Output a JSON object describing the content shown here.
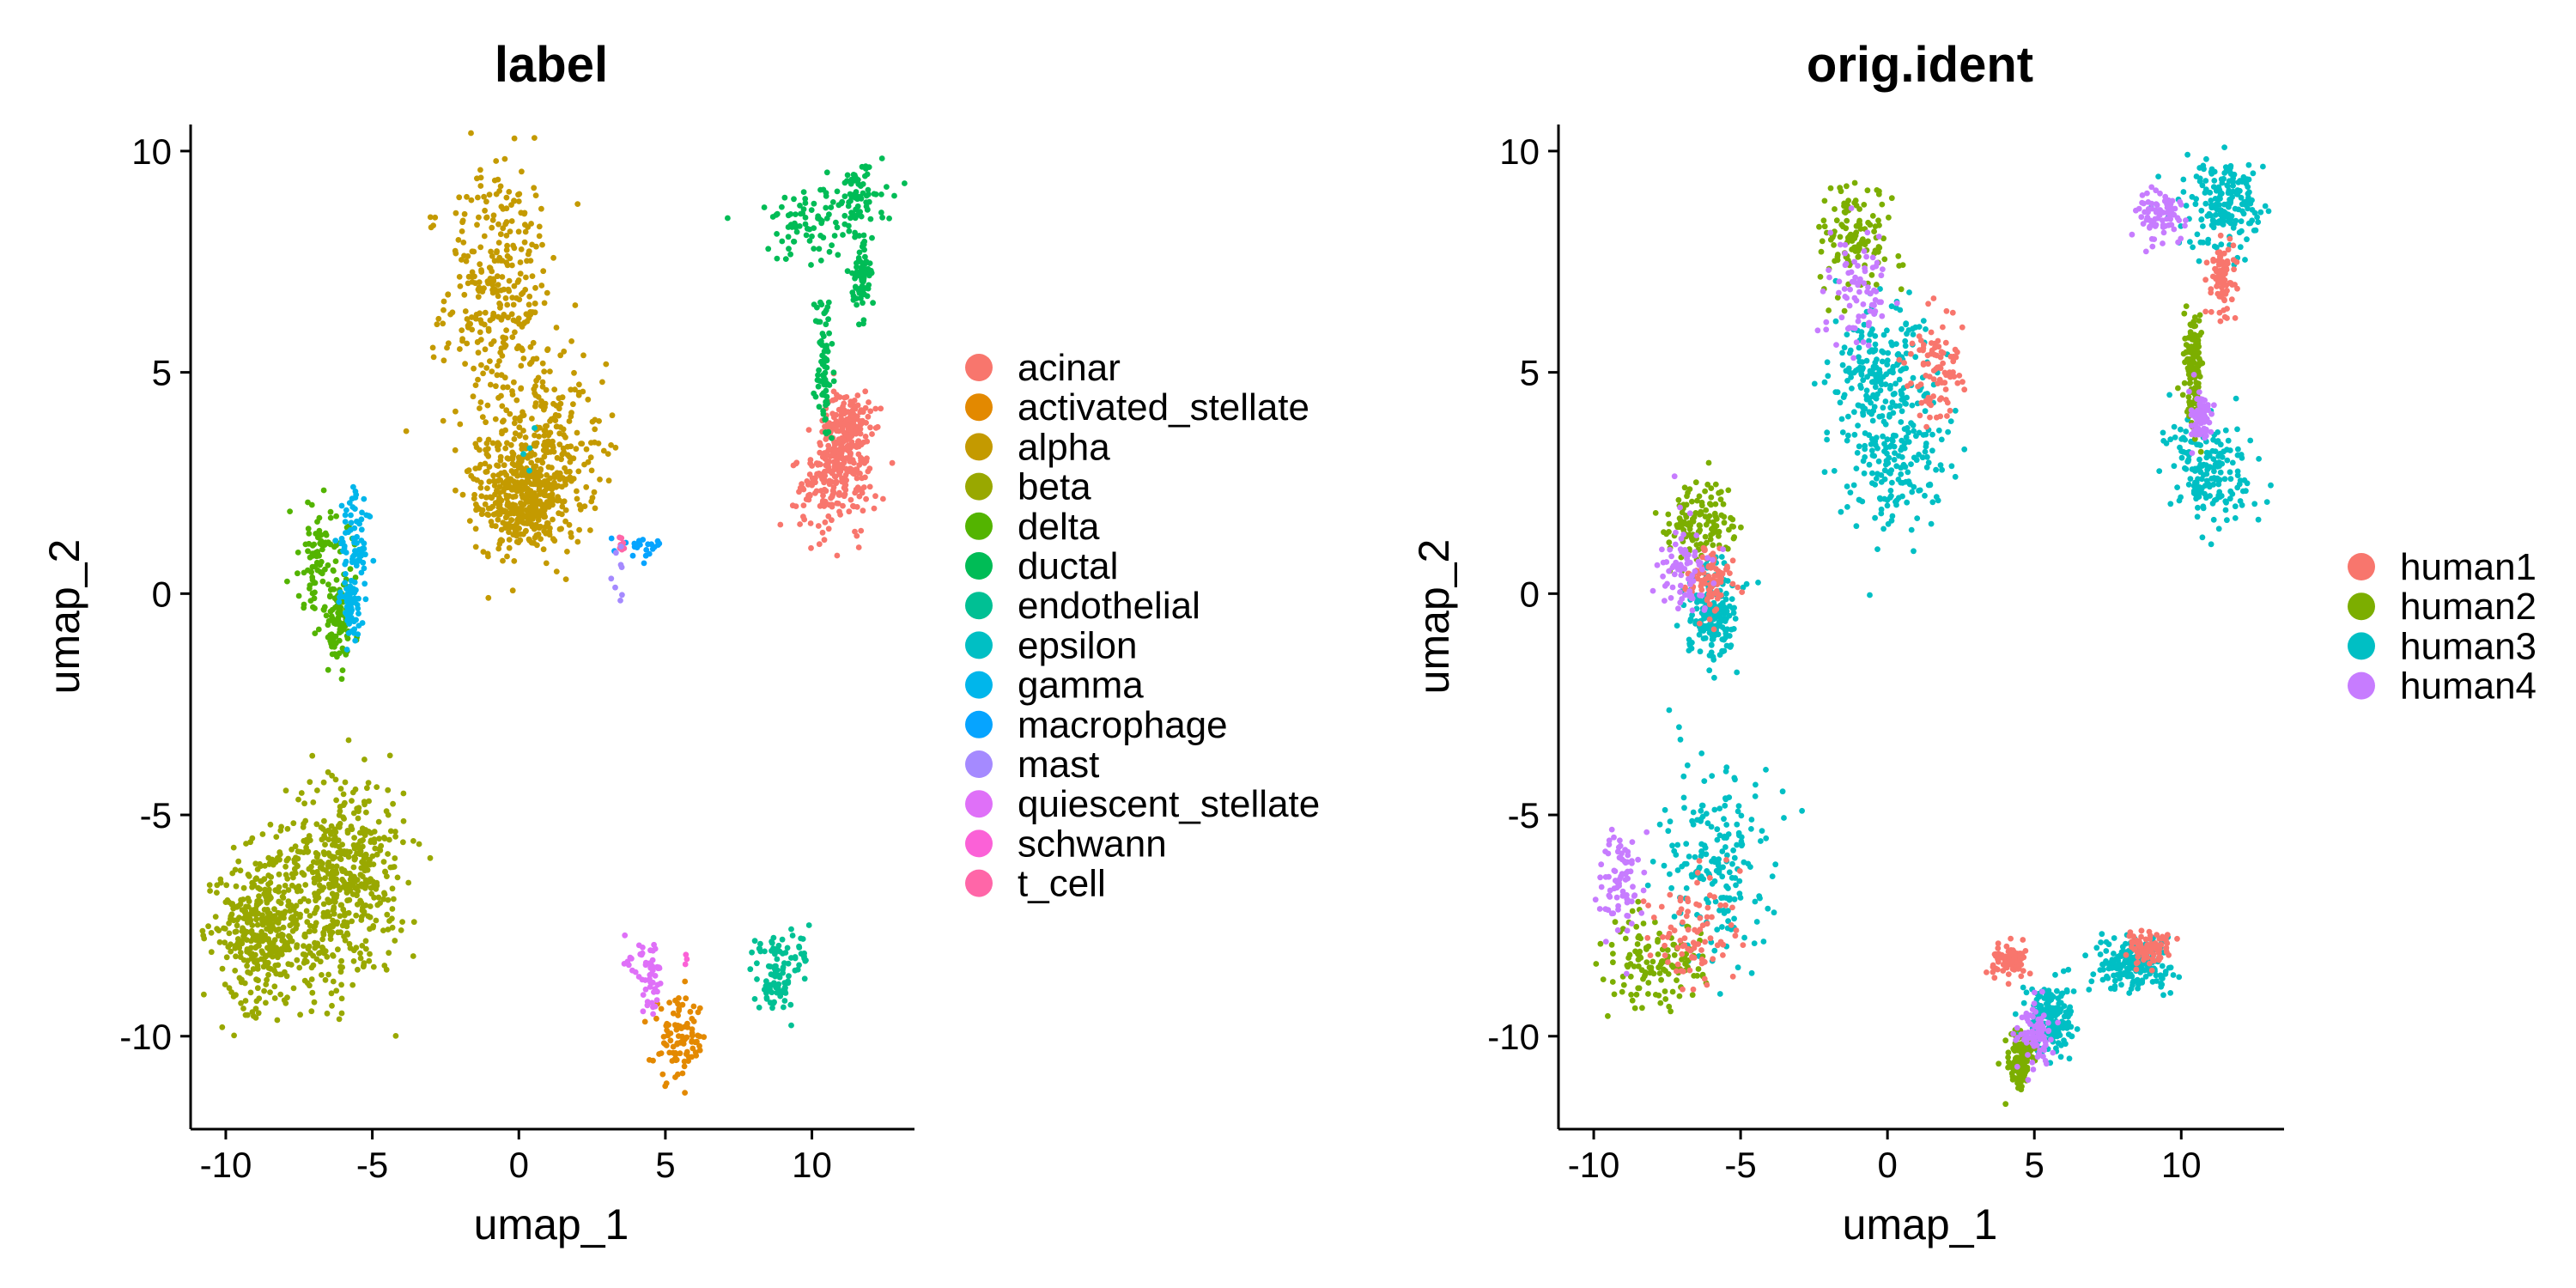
{
  "colors": {
    "acinar": "#F8766D",
    "activated_stellate": "#E38900",
    "alpha": "#C49A00",
    "beta": "#99A800",
    "delta": "#53B400",
    "ductal": "#00BC56",
    "endothelial": "#00C094",
    "epsilon": "#00BFC4",
    "gamma": "#00B6EB",
    "macrophage": "#06A4FF",
    "mast": "#A58AFF",
    "quiescent_stellate": "#DF70F8",
    "schwann": "#FB61D7",
    "t_cell": "#FF66A8",
    "human1": "#F8766D",
    "human2": "#7CAE00",
    "human3": "#00BFC4",
    "human4": "#C77CFF"
  },
  "chart_data": [
    {
      "type": "scatter",
      "title": "label",
      "xlabel": "umap_1",
      "ylabel": "umap_2",
      "xlim": [
        -11.2,
        13.5
      ],
      "ylim": [
        -12.1,
        10.6
      ],
      "xticks": [
        -10,
        -5,
        0,
        5,
        10
      ],
      "yticks": [
        10,
        5,
        0,
        -5,
        -10
      ],
      "xtick_labels": [
        "-10",
        "-5",
        "0",
        "5",
        "10"
      ],
      "ytick_labels": [
        "10",
        "5",
        "0",
        "-5",
        "-10"
      ],
      "grid": false,
      "legend_position": "right",
      "legend": [
        "acinar",
        "activated_stellate",
        "alpha",
        "beta",
        "delta",
        "ductal",
        "endothelial",
        "epsilon",
        "gamma",
        "macrophage",
        "mast",
        "quiescent_stellate",
        "schwann",
        "t_cell"
      ],
      "clusters": [
        {
          "label": "alpha",
          "n": 950,
          "components": [
            {
              "cx": -0.7,
              "cy": 6.8,
              "sx": 0.9,
              "sy": 1.5
            },
            {
              "cx": 0.6,
              "cy": 3.2,
              "sx": 1.1,
              "sy": 1.0
            },
            {
              "cx": 0.2,
              "cy": 2.0,
              "sx": 0.8,
              "sy": 0.5
            }
          ]
        },
        {
          "label": "beta",
          "n": 900,
          "components": [
            {
              "cx": -6.9,
              "cy": -7.4,
              "sx": 1.3,
              "sy": 0.9
            },
            {
              "cx": -5.9,
              "cy": -5.9,
              "sx": 1.0,
              "sy": 0.9
            },
            {
              "cx": -8.9,
              "cy": -7.6,
              "sx": 0.7,
              "sy": 0.9
            }
          ]
        },
        {
          "label": "acinar",
          "n": 380,
          "components": [
            {
              "cx": 10.8,
              "cy": 2.6,
              "sx": 0.7,
              "sy": 0.6
            },
            {
              "cx": 11.2,
              "cy": 3.6,
              "sx": 0.4,
              "sy": 0.5
            }
          ]
        },
        {
          "label": "ductal",
          "n": 300,
          "components": [
            {
              "cx": 9.9,
              "cy": 8.4,
              "sx": 0.9,
              "sy": 0.4
            },
            {
              "cx": 11.6,
              "cy": 8.9,
              "sx": 0.4,
              "sy": 0.5
            },
            {
              "cx": 10.4,
              "cy": 5.1,
              "sx": 0.15,
              "sy": 0.9
            },
            {
              "cx": 11.7,
              "cy": 7.1,
              "sx": 0.15,
              "sy": 0.4
            }
          ]
        },
        {
          "label": "delta",
          "n": 180,
          "components": [
            {
              "cx": -6.8,
              "cy": 0.8,
              "sx": 0.5,
              "sy": 0.6
            },
            {
              "cx": -6.2,
              "cy": -0.7,
              "sx": 0.3,
              "sy": 0.5
            }
          ]
        },
        {
          "label": "gamma",
          "n": 130,
          "components": [
            {
              "cx": -5.6,
              "cy": 1.2,
              "sx": 0.3,
              "sy": 0.6
            },
            {
              "cx": -5.7,
              "cy": -0.2,
              "sx": 0.2,
              "sy": 0.4
            }
          ]
        },
        {
          "label": "endothelial",
          "n": 110,
          "components": [
            {
              "cx": 8.9,
              "cy": -8.2,
              "sx": 0.55,
              "sy": 0.25
            },
            {
              "cx": 8.8,
              "cy": -8.9,
              "sx": 0.3,
              "sy": 0.25
            }
          ]
        },
        {
          "label": "activated_stellate",
          "n": 95,
          "components": [
            {
              "cx": 5.5,
              "cy": -10.1,
              "sx": 0.45,
              "sy": 0.45
            }
          ]
        },
        {
          "label": "quiescent_stellate",
          "n": 55,
          "components": [
            {
              "cx": 4.3,
              "cy": -8.3,
              "sx": 0.35,
              "sy": 0.25
            },
            {
              "cx": 4.6,
              "cy": -9.0,
              "sx": 0.2,
              "sy": 0.3
            }
          ]
        },
        {
          "label": "macrophage",
          "n": 22,
          "components": [
            {
              "cx": 4.2,
              "cy": 1.1,
              "sx": 0.35,
              "sy": 0.12
            }
          ]
        },
        {
          "label": "t_cell",
          "n": 10,
          "components": [
            {
              "cx": 3.5,
              "cy": 1.1,
              "sx": 0.1,
              "sy": 0.1
            }
          ]
        },
        {
          "label": "mast",
          "n": 8,
          "components": [
            {
              "cx": 3.4,
              "cy": 0.3,
              "sx": 0.1,
              "sy": 0.3
            }
          ]
        },
        {
          "label": "epsilon",
          "n": 4,
          "components": [
            {
              "cx": 0.4,
              "cy": 3.3,
              "sx": 0.3,
              "sy": 0.3
            }
          ]
        },
        {
          "label": "schwann",
          "n": 3,
          "components": [
            {
              "cx": 5.7,
              "cy": -8.3,
              "sx": 0.1,
              "sy": 0.1
            }
          ]
        }
      ]
    },
    {
      "type": "scatter",
      "title": "orig.ident",
      "xlabel": "umap_1",
      "ylabel": "umap_2",
      "xlim": [
        -11.2,
        13.5
      ],
      "ylim": [
        -12.1,
        10.6
      ],
      "xticks": [
        -10,
        -5,
        0,
        5,
        10
      ],
      "yticks": [
        10,
        5,
        0,
        -5,
        -10
      ],
      "xtick_labels": [
        "-10",
        "-5",
        "0",
        "5",
        "10"
      ],
      "ytick_labels": [
        "10",
        "5",
        "0",
        "-5",
        "-10"
      ],
      "grid": false,
      "legend_position": "right",
      "legend": [
        "human1",
        "human2",
        "human3",
        "human4"
      ],
      "clusters": [
        {
          "label": "human3",
          "n": 1500,
          "components": [
            {
              "cx": 0.4,
              "cy": 3.3,
              "sx": 1.0,
              "sy": 1.0
            },
            {
              "cx": -0.2,
              "cy": 5.0,
              "sx": 0.8,
              "sy": 0.8
            },
            {
              "cx": 11.0,
              "cy": 2.8,
              "sx": 0.7,
              "sy": 0.6
            },
            {
              "cx": 11.4,
              "cy": 8.8,
              "sx": 0.7,
              "sy": 0.5
            },
            {
              "cx": -5.8,
              "cy": -6.0,
              "sx": 0.9,
              "sy": 1.1
            },
            {
              "cx": -6.0,
              "cy": -0.4,
              "sx": 0.4,
              "sy": 0.5
            },
            {
              "cx": 8.4,
              "cy": -8.4,
              "sx": 0.6,
              "sy": 0.3
            },
            {
              "cx": 5.5,
              "cy": -9.6,
              "sx": 0.4,
              "sy": 0.4
            }
          ]
        },
        {
          "label": "human2",
          "n": 650,
          "components": [
            {
              "cx": -1.2,
              "cy": 8.0,
              "sx": 0.6,
              "sy": 0.6
            },
            {
              "cx": -7.8,
              "cy": -8.4,
              "sx": 0.9,
              "sy": 0.5
            },
            {
              "cx": -6.4,
              "cy": 1.6,
              "sx": 0.6,
              "sy": 0.4
            },
            {
              "cx": 10.4,
              "cy": 5.0,
              "sx": 0.15,
              "sy": 0.6
            },
            {
              "cx": 4.5,
              "cy": -10.5,
              "sx": 0.2,
              "sy": 0.3
            }
          ]
        },
        {
          "label": "human1",
          "n": 520,
          "components": [
            {
              "cx": -6.6,
              "cy": -7.6,
              "sx": 0.8,
              "sy": 0.7
            },
            {
              "cx": 1.6,
              "cy": 5.0,
              "sx": 0.5,
              "sy": 0.6
            },
            {
              "cx": 4.2,
              "cy": -8.3,
              "sx": 0.3,
              "sy": 0.2
            },
            {
              "cx": 8.9,
              "cy": -8.0,
              "sx": 0.4,
              "sy": 0.2
            },
            {
              "cx": 11.4,
              "cy": 7.2,
              "sx": 0.2,
              "sy": 0.4
            },
            {
              "cx": -6.1,
              "cy": 0.3,
              "sx": 0.4,
              "sy": 0.4
            }
          ]
        },
        {
          "label": "human4",
          "n": 470,
          "components": [
            {
              "cx": -1.0,
              "cy": 6.7,
              "sx": 0.55,
              "sy": 0.6
            },
            {
              "cx": -9.1,
              "cy": -6.6,
              "sx": 0.4,
              "sy": 0.6
            },
            {
              "cx": 9.3,
              "cy": 8.5,
              "sx": 0.4,
              "sy": 0.3
            },
            {
              "cx": -6.9,
              "cy": 0.5,
              "sx": 0.4,
              "sy": 0.6
            },
            {
              "cx": 5.0,
              "cy": -10.0,
              "sx": 0.3,
              "sy": 0.4
            },
            {
              "cx": 10.7,
              "cy": 4.0,
              "sx": 0.2,
              "sy": 0.3
            }
          ]
        }
      ]
    }
  ]
}
